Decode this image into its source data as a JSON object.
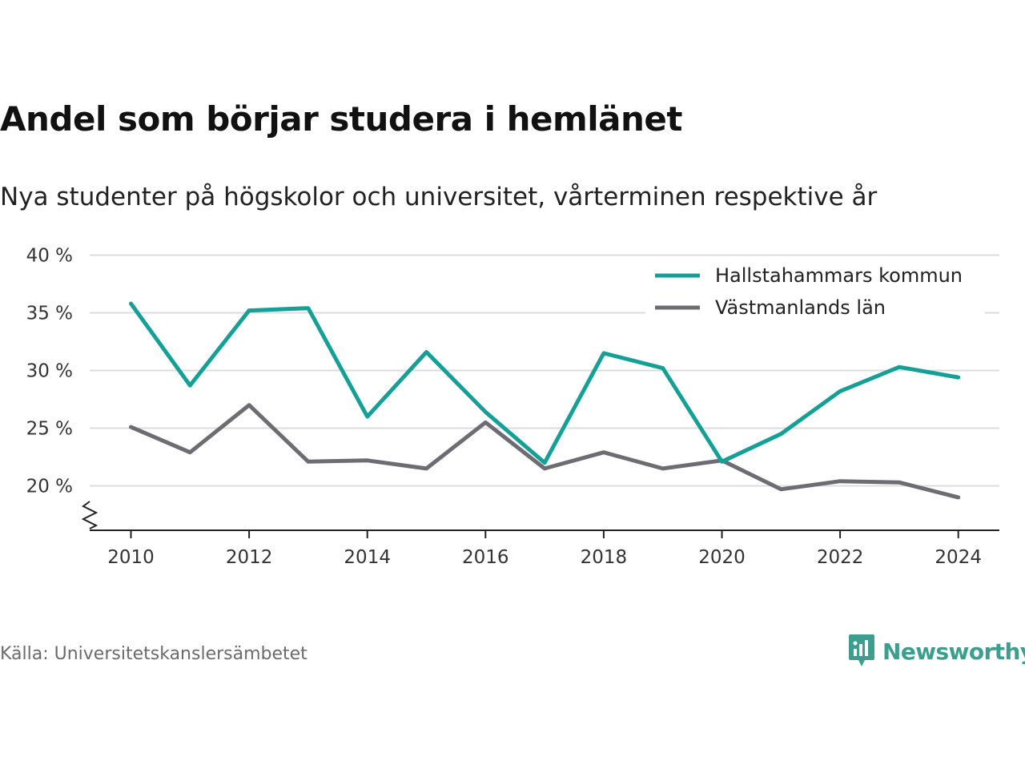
{
  "header": {
    "title": "Andel som börjar studera i hemlänet",
    "subtitle": "Nya studenter på högskolor och universitet, vårterminen respektive år"
  },
  "footer": {
    "source": "Källa: Universitetskanslersämbetet",
    "brand": "Newsworthy",
    "brand_icon": "newsworthy-logo-icon",
    "brand_color": "#3c9e8e"
  },
  "chart_data": {
    "type": "line",
    "title": "Andel som börjar studera i hemlänet",
    "subtitle": "Nya studenter på högskolor och universitet, vårterminen respektive år",
    "xlabel": "",
    "ylabel": "",
    "x": [
      2010,
      2011,
      2012,
      2013,
      2014,
      2015,
      2016,
      2017,
      2018,
      2019,
      2020,
      2021,
      2022,
      2023,
      2024
    ],
    "x_ticks": [
      "2010",
      "2012",
      "2014",
      "2016",
      "2018",
      "2020",
      "2022",
      "2024"
    ],
    "y_ticks": [
      "20 %",
      "25 %",
      "30 %",
      "35 %",
      "40 %"
    ],
    "ylim": [
      16.2,
      40
    ],
    "y_axis_break": true,
    "grid": "horizontal",
    "legend_position": "top-right",
    "series": [
      {
        "name": "Hallstahammars kommun",
        "color": "#15a097",
        "values": [
          35.8,
          28.7,
          35.2,
          35.4,
          26.0,
          31.6,
          26.4,
          22.0,
          31.5,
          30.2,
          22.1,
          24.5,
          28.2,
          30.3,
          29.4
        ]
      },
      {
        "name": "Västmanlands län",
        "color": "#6d6c73",
        "values": [
          25.1,
          22.9,
          27.0,
          22.1,
          22.2,
          21.5,
          25.5,
          21.5,
          22.9,
          21.5,
          22.2,
          19.7,
          20.4,
          20.3,
          19.0
        ]
      }
    ]
  }
}
